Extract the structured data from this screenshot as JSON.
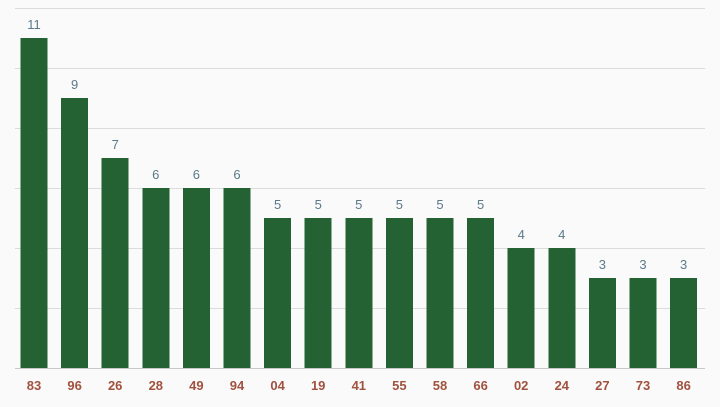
{
  "chart_data": {
    "type": "bar",
    "title": "",
    "xlabel": "",
    "ylabel": "",
    "categories": [
      "83",
      "96",
      "26",
      "28",
      "49",
      "94",
      "04",
      "19",
      "41",
      "55",
      "58",
      "66",
      "02",
      "24",
      "27",
      "73",
      "86"
    ],
    "values": [
      11,
      9,
      7,
      6,
      6,
      6,
      5,
      5,
      5,
      5,
      5,
      5,
      4,
      4,
      3,
      3,
      3
    ],
    "ylim": [
      0,
      12
    ],
    "grid": true,
    "legend": "none",
    "data_labels": true
  },
  "colors": {
    "bar": "#246233",
    "value_label": "#5a7a8a",
    "tick_label": "#a0523f",
    "background": "#fafafa",
    "grid": "#dcdcdc"
  }
}
